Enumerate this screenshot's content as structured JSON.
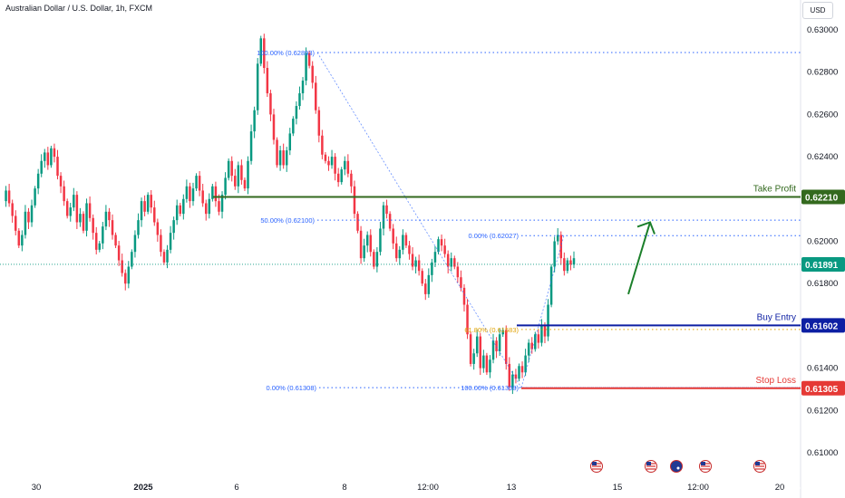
{
  "header": {
    "title": "Australian Dollar / U.S. Dollar, 1h, FXCM",
    "unit_button": "USD"
  },
  "chart_data": {
    "type": "candlestick",
    "symbol": "Australian Dollar / U.S. Dollar",
    "timeframe": "1h",
    "source": "FXCM",
    "y_axis": {
      "range": [
        0.61,
        0.6305
      ],
      "ticks": [
        "0.63000",
        "0.62800",
        "0.62600",
        "0.62400",
        "0.62200",
        "0.62000",
        "0.61800",
        "0.61600",
        "0.61400",
        "0.61200",
        "0.61000"
      ]
    },
    "x_axis": {
      "ticks": [
        "30",
        "2025",
        "6",
        "8",
        "12:00",
        "13",
        "15",
        "12:00",
        "20"
      ]
    },
    "current_price": {
      "value": 0.61891,
      "label": "0.61891",
      "color": "#089981"
    },
    "levels": [
      {
        "name": "Take Profit",
        "value": 0.6221,
        "label": "0.62210",
        "color": "#33691e"
      },
      {
        "name": "Buy Entry",
        "value": 0.61602,
        "label": "0.61602",
        "color": "#0d1fa3"
      },
      {
        "name": "Stop Loss",
        "value": 0.61305,
        "label": "0.61305",
        "color": "#e53935"
      }
    ],
    "fib_retracement_1": [
      {
        "label": "100.00% (0.62893)",
        "value": 0.62893
      },
      {
        "label": "50.00% (0.62100)",
        "value": 0.621
      },
      {
        "label": "0.00% (0.61308)",
        "value": 0.61308
      }
    ],
    "fib_retracement_2": [
      {
        "label": "0.00% (0.62027)",
        "value": 0.62027
      },
      {
        "label": "61.80% (0.61583)",
        "value": 0.61583
      },
      {
        "label": "100.00% (0.61308)",
        "value": 0.61308
      }
    ],
    "projection_arrow": {
      "from": 0.6175,
      "to": 0.6209,
      "color": "#1b7f2a"
    },
    "event_flags": [
      "us",
      "us",
      "au",
      "us",
      "us"
    ],
    "colors": {
      "up": "#089981",
      "down": "#f23645",
      "fib": "#2962ff",
      "fib_golden": "#e0a100"
    },
    "price_path": [
      0.6219,
      0.6224,
      0.6218,
      0.6212,
      0.6205,
      0.6198,
      0.6203,
      0.6214,
      0.6209,
      0.6217,
      0.6225,
      0.6232,
      0.6238,
      0.6242,
      0.6236,
      0.6244,
      0.624,
      0.6231,
      0.6226,
      0.6219,
      0.6212,
      0.6216,
      0.6222,
      0.6209,
      0.6213,
      0.6205,
      0.6218,
      0.6211,
      0.6204,
      0.6196,
      0.6199,
      0.6207,
      0.6214,
      0.621,
      0.6203,
      0.6198,
      0.6191,
      0.6185,
      0.618,
      0.6188,
      0.6195,
      0.6203,
      0.621,
      0.6219,
      0.6214,
      0.6222,
      0.6216,
      0.6209,
      0.6203,
      0.6195,
      0.619,
      0.6196,
      0.6204,
      0.621,
      0.6217,
      0.6213,
      0.622,
      0.6226,
      0.6219,
      0.6225,
      0.6231,
      0.6224,
      0.6218,
      0.6213,
      0.622,
      0.6226,
      0.6219,
      0.6214,
      0.6222,
      0.623,
      0.6238,
      0.6231,
      0.6226,
      0.6236,
      0.6229,
      0.6225,
      0.6238,
      0.6252,
      0.6262,
      0.6284,
      0.6296,
      0.6282,
      0.627,
      0.626,
      0.6248,
      0.6236,
      0.6243,
      0.6236,
      0.6243,
      0.6251,
      0.6258,
      0.6264,
      0.627,
      0.6276,
      0.6289,
      0.6283,
      0.6275,
      0.6262,
      0.625,
      0.6241,
      0.6238,
      0.6236,
      0.624,
      0.6232,
      0.6228,
      0.6234,
      0.6238,
      0.6232,
      0.6226,
      0.6213,
      0.6205,
      0.6192,
      0.6198,
      0.6203,
      0.6195,
      0.6188,
      0.6195,
      0.6206,
      0.6217,
      0.6213,
      0.6206,
      0.6199,
      0.6192,
      0.6196,
      0.6203,
      0.6198,
      0.6194,
      0.6188,
      0.6191,
      0.6186,
      0.618,
      0.6175,
      0.6184,
      0.619,
      0.6195,
      0.6201,
      0.6198,
      0.6194,
      0.6188,
      0.6192,
      0.6188,
      0.6183,
      0.6178,
      0.617,
      0.6156,
      0.6142,
      0.6147,
      0.6155,
      0.614,
      0.6146,
      0.6138,
      0.6144,
      0.6153,
      0.6148,
      0.6156,
      0.6158,
      0.6142,
      0.6131,
      0.6137,
      0.6135,
      0.6141,
      0.6138,
      0.6146,
      0.6152,
      0.6149,
      0.6156,
      0.6152,
      0.616,
      0.6155,
      0.617,
      0.6188,
      0.62,
      0.6203,
      0.6192,
      0.6186,
      0.6191,
      0.6189,
      0.6192
    ]
  }
}
